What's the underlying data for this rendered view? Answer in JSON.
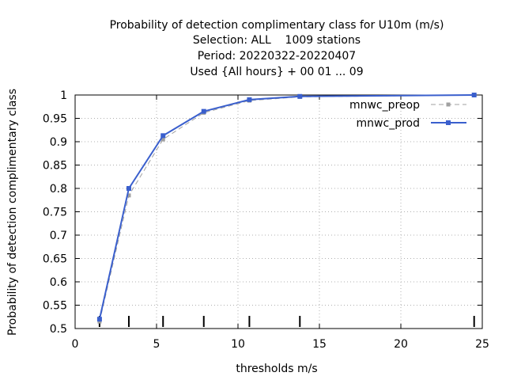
{
  "chart_data": {
    "type": "line",
    "title_lines": [
      "Probability of detection complimentary class  for U10m (m/s)",
      "Selection: ALL    1009 stations",
      "Period: 20220322-20220407",
      "Used {All hours} + 00 01 ... 09"
    ],
    "xlabel": "thresholds m/s",
    "ylabel": "Probability of detection complimentary class",
    "xlim": [
      0,
      25
    ],
    "ylim": [
      0.5,
      1
    ],
    "x_ticks": [
      0,
      5,
      10,
      15,
      20,
      25
    ],
    "y_ticks": [
      0.5,
      0.55,
      0.6,
      0.65,
      0.7,
      0.75,
      0.8,
      0.85,
      0.9,
      0.95,
      1
    ],
    "y_tick_labels": [
      "0.5",
      "0.55",
      "0.6",
      "0.65",
      "0.7",
      "0.75",
      "0.8",
      "0.85",
      "0.9",
      "0.95",
      "1"
    ],
    "grid": true,
    "legend_position": "top-right",
    "threshold_markers": [
      1.5,
      3.3,
      5.4,
      7.9,
      10.7,
      13.8,
      24.5
    ],
    "series": [
      {
        "name": "mnwc_preop",
        "color": "#a0a0a0",
        "dashed": true,
        "x": [
          1.5,
          3.3,
          5.4,
          7.9,
          10.7,
          13.8,
          24.5
        ],
        "y": [
          0.515,
          0.785,
          0.905,
          0.962,
          0.988,
          0.996,
          1.0
        ]
      },
      {
        "name": "mnwc_prod",
        "color": "#3a5fcd",
        "dashed": false,
        "x": [
          1.5,
          3.3,
          5.4,
          7.9,
          10.7,
          13.8,
          24.5
        ],
        "y": [
          0.52,
          0.8,
          0.913,
          0.965,
          0.99,
          0.997,
          1.0
        ]
      }
    ]
  }
}
